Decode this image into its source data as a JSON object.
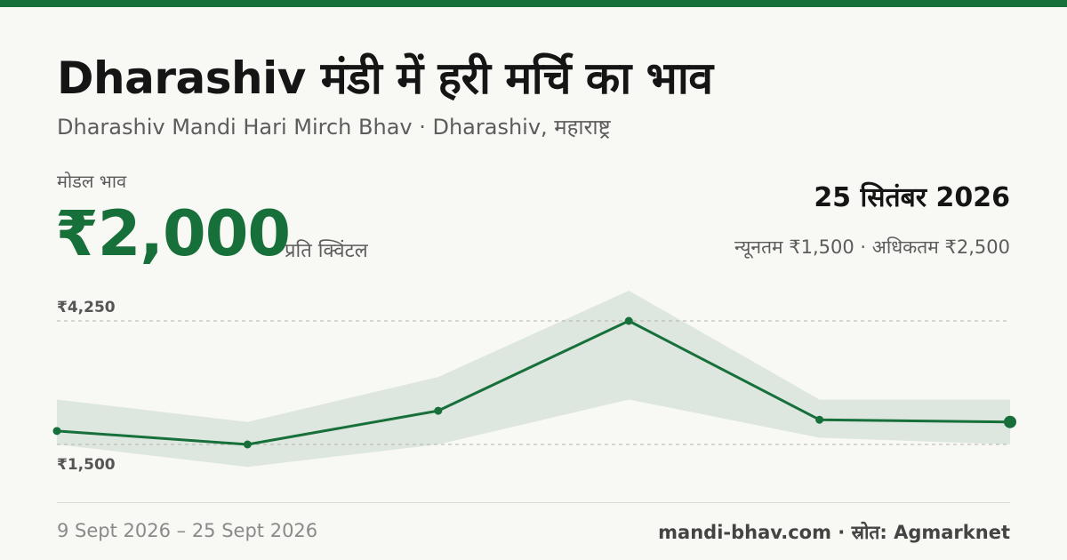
{
  "header": {
    "title": "Dharashiv मंडी में हरी मर्चि का भाव",
    "subtitle": "Dharashiv Mandi Hari Mirch Bhav · Dharashiv, महाराष्ट्र"
  },
  "price": {
    "modal_label": "मोडल भाव",
    "modal_value": "₹2,000",
    "unit": "प्रति क्विंटल",
    "date": "25 सितंबर 2026",
    "min_max": "न्यूनतम ₹1,500 · अधिकतम ₹2,500"
  },
  "footer": {
    "date_range": "9 Sept 2026 – 25 Sept 2026",
    "source": "mandi-bhav.com · स्रोत: Agmarknet"
  },
  "colors": {
    "accent": "#17703a",
    "band": "#dde7df",
    "background": "#f8f8f4"
  },
  "chart_data": {
    "type": "line",
    "y_tick_labels": [
      "₹4,250",
      "₹1,500"
    ],
    "y_ticks": [
      4250,
      1500
    ],
    "grid": "dashed reference lines at labeled ticks",
    "series": [
      {
        "role": "modal",
        "values": [
          1800,
          1500,
          2250,
          4250,
          2050,
          2000
        ]
      },
      {
        "role": "min",
        "values": [
          1500,
          1000,
          1500,
          2500,
          1650,
          1500
        ]
      },
      {
        "role": "max",
        "values": [
          2500,
          2000,
          3000,
          5000,
          2500,
          2500
        ]
      }
    ]
  }
}
